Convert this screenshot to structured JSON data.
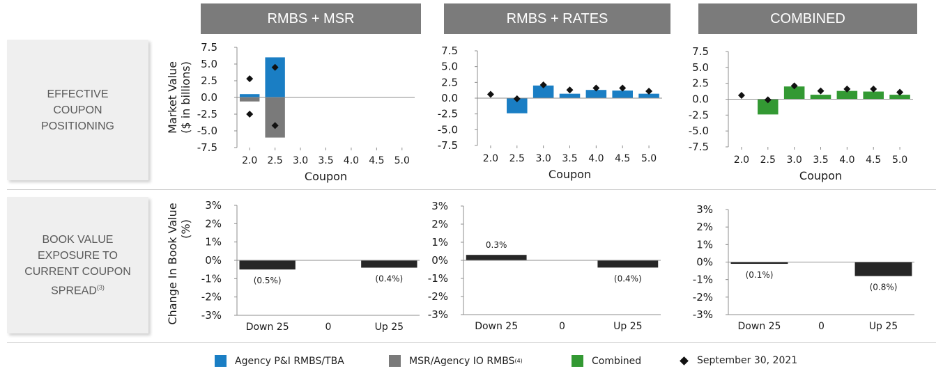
{
  "columns": [
    "RMBS + MSR",
    "RMBS + RATES",
    "COMBINED"
  ],
  "rows": {
    "effective": [
      "EFFECTIVE",
      "COUPON",
      "POSITIONING"
    ],
    "book": [
      "BOOK VALUE",
      "EXPOSURE TO",
      "CURRENT COUPON",
      "SPREAD",
      "(3)"
    ]
  },
  "colors": {
    "agency": "#1a7ec4",
    "msr": "#7a7a7a",
    "combined": "#339933",
    "bv_bar": "#262626",
    "marker": "#111111"
  },
  "chart_data": [
    {
      "type": "bar",
      "panel": "RMBS + MSR coupon",
      "categories": [
        "2.0",
        "2.5",
        "3.0",
        "3.5",
        "4.0",
        "4.5",
        "5.0"
      ],
      "xlabel": "Coupon",
      "ylabel": "Market Value ($ in billions)",
      "ylim": [
        -7.5,
        7.5
      ],
      "yticks": [
        "7.5",
        "5.0",
        "2.5",
        "0.0",
        "-2.5",
        "-5.0",
        "-7.5"
      ],
      "series": [
        {
          "name": "Agency P&I RMBS/TBA",
          "color": "agency",
          "values": [
            0.5,
            6.0,
            0,
            0,
            0,
            0,
            0
          ]
        },
        {
          "name": "MSR/Agency IO RMBS",
          "color": "msr",
          "values": [
            -0.6,
            -6.0,
            0,
            0,
            0,
            0,
            0
          ]
        }
      ],
      "markers": [
        {
          "name": "September 30, 2021",
          "points": [
            [
              0,
              2.8
            ],
            [
              0,
              -2.5
            ],
            [
              1,
              4.5
            ],
            [
              1,
              -4.2
            ]
          ]
        }
      ]
    },
    {
      "type": "bar",
      "panel": "RMBS + RATES coupon",
      "categories": [
        "2.0",
        "2.5",
        "3.0",
        "3.5",
        "4.0",
        "4.5",
        "5.0"
      ],
      "xlabel": "Coupon",
      "ylim": [
        -7.5,
        7.5
      ],
      "yticks": [
        "7.5",
        "5.0",
        "2.5",
        "0.0",
        "-2.5",
        "-5.0",
        "-7.5"
      ],
      "series": [
        {
          "name": "Agency P&I RMBS/TBA",
          "color": "agency",
          "values": [
            0,
            -2.4,
            2.0,
            0.7,
            1.3,
            1.2,
            0.7
          ]
        }
      ],
      "markers": [
        {
          "name": "September 30, 2021",
          "points": [
            [
              0,
              0.6
            ],
            [
              1,
              -0.1
            ],
            [
              2,
              2.1
            ],
            [
              3,
              1.3
            ],
            [
              4,
              1.6
            ],
            [
              5,
              1.6
            ],
            [
              6,
              1.1
            ]
          ]
        }
      ]
    },
    {
      "type": "bar",
      "panel": "COMBINED coupon",
      "categories": [
        "2.0",
        "2.5",
        "3.0",
        "3.5",
        "4.0",
        "4.5",
        "5.0"
      ],
      "xlabel": "Coupon",
      "ylim": [
        -7.5,
        7.5
      ],
      "yticks": [
        "7.5",
        "5.0",
        "2.5",
        "0.0",
        "-2.5",
        "-5.0",
        "-7.5"
      ],
      "series": [
        {
          "name": "Combined",
          "color": "combined",
          "values": [
            0,
            -2.4,
            2.0,
            0.7,
            1.3,
            1.2,
            0.7
          ]
        }
      ],
      "markers": [
        {
          "name": "September 30, 2021",
          "points": [
            [
              0,
              0.6
            ],
            [
              1,
              -0.1
            ],
            [
              2,
              2.1
            ],
            [
              3,
              1.3
            ],
            [
              4,
              1.6
            ],
            [
              5,
              1.6
            ],
            [
              6,
              1.1
            ]
          ]
        }
      ]
    },
    {
      "type": "bar",
      "panel": "RMBS + MSR book value",
      "categories": [
        "Down 25",
        "0",
        "Up 25"
      ],
      "ylabel": "Change In Book Value (%)",
      "ylim": [
        -3,
        3
      ],
      "yticks": [
        "3%",
        "2%",
        "1%",
        "0%",
        "-1%",
        "-2%",
        "-3%"
      ],
      "values": [
        -0.5,
        0,
        -0.4
      ],
      "labels": [
        "(0.5%)",
        "",
        "(0.4%)"
      ],
      "color": "bv_bar"
    },
    {
      "type": "bar",
      "panel": "RMBS + RATES book value",
      "categories": [
        "Down 25",
        "0",
        "Up 25"
      ],
      "ylim": [
        -3,
        3
      ],
      "yticks": [
        "3%",
        "2%",
        "1%",
        "0%",
        "-1%",
        "-2%",
        "-3%"
      ],
      "values": [
        0.3,
        0,
        -0.4
      ],
      "labels": [
        "0.3%",
        "",
        "(0.4%)"
      ],
      "color": "bv_bar"
    },
    {
      "type": "bar",
      "panel": "COMBINED book value",
      "categories": [
        "Down 25",
        "0",
        "Up 25"
      ],
      "ylim": [
        -3,
        3
      ],
      "yticks": [
        "3%",
        "2%",
        "1%",
        "0%",
        "-1%",
        "-2%",
        "-3%"
      ],
      "values": [
        -0.1,
        0,
        -0.8
      ],
      "labels": [
        "(0.1%)",
        "",
        "(0.8%)"
      ],
      "color": "bv_bar"
    }
  ],
  "legend": [
    {
      "label": "Agency P&I RMBS/TBA",
      "sup": "",
      "color": "agency",
      "shape": "square"
    },
    {
      "label": "MSR/Agency IO RMBS",
      "sup": "(4)",
      "color": "msr",
      "shape": "square"
    },
    {
      "label": "Combined",
      "sup": "",
      "color": "combined",
      "shape": "square"
    },
    {
      "label": "September 30, 2021",
      "sup": "",
      "color": "marker",
      "shape": "diamond"
    }
  ]
}
